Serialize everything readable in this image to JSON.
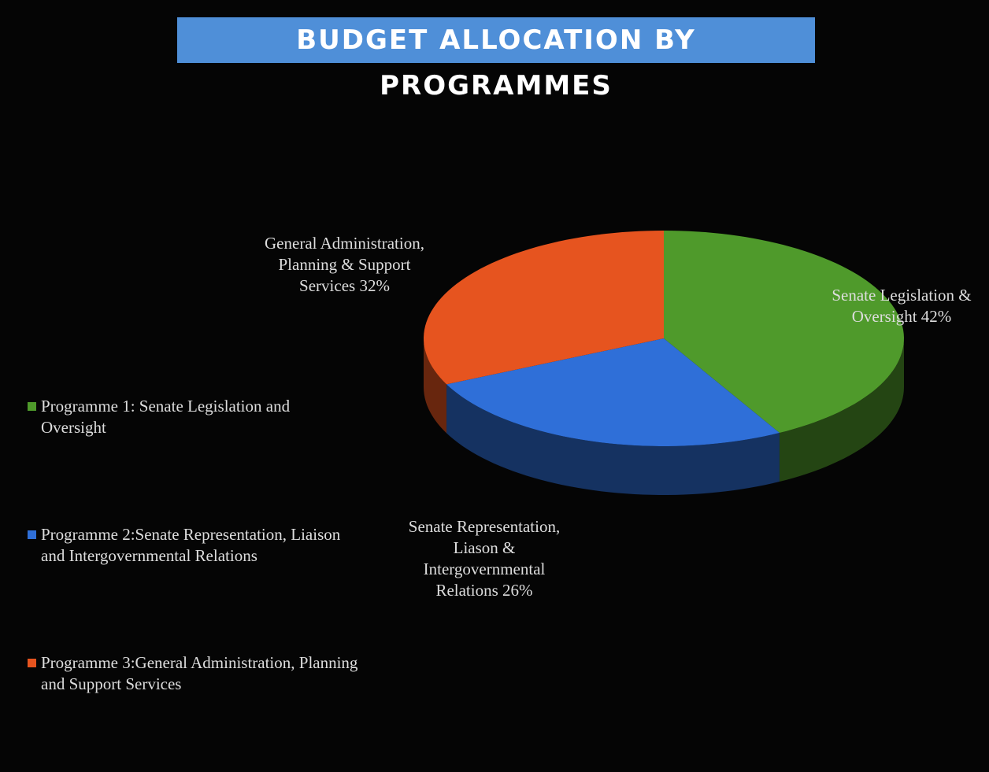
{
  "chart_data": {
    "type": "pie",
    "title": "BUDGET ALLOCATION BY PROGRAMMES",
    "categories": [
      "Programme 1: Senate Legislation and Oversight",
      "Programme 2:Senate Representation, Liaison and Intergovernmental Relations",
      "Programme 3:General Administration, Planning and Support Services"
    ],
    "values": [
      42,
      26,
      32
    ],
    "value_labels": [
      "Senate Legislation & Oversight 42%",
      "Senate Representation, Liason & Intergovernmental Relations 26%",
      "General Administration, Planning & Support Services 32%"
    ],
    "colors": [
      "#4f9a2b",
      "#2f6fd8",
      "#e6541f"
    ],
    "legend": "left"
  }
}
